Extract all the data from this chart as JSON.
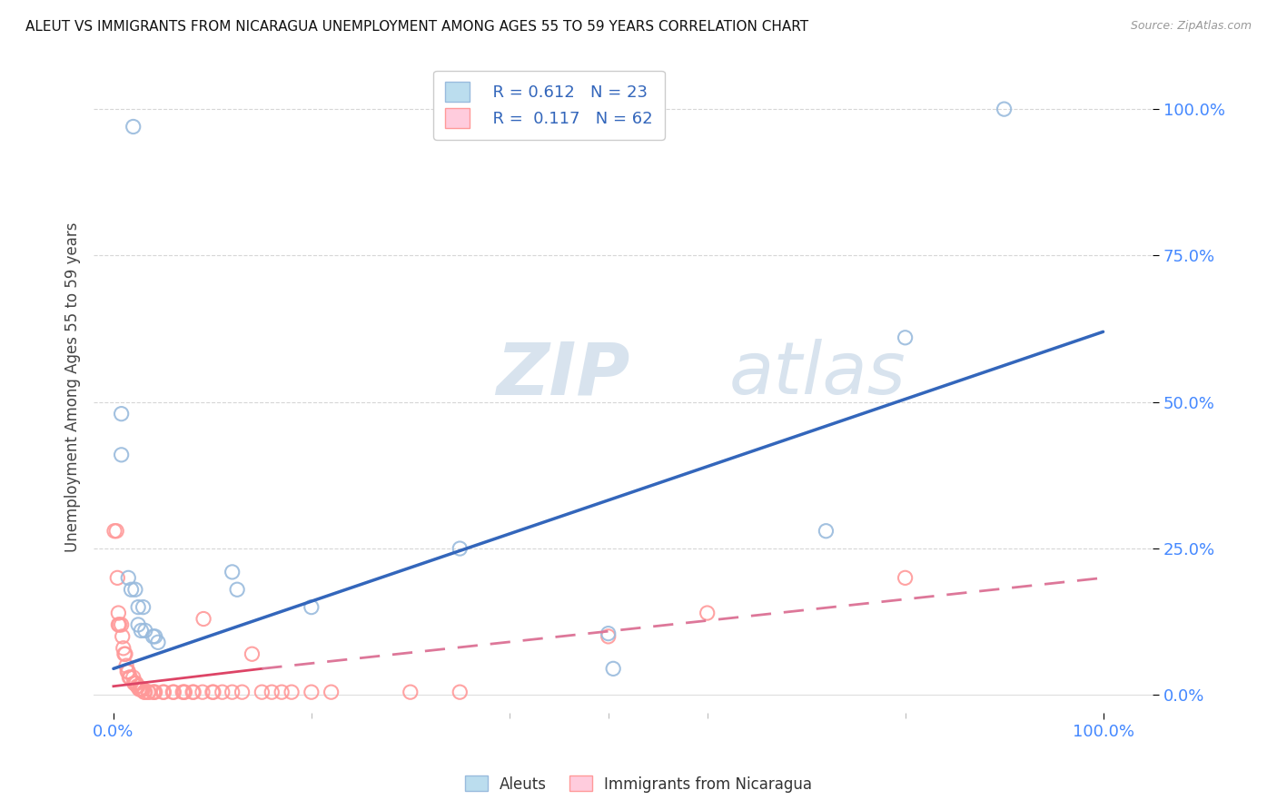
{
  "title": "ALEUT VS IMMIGRANTS FROM NICARAGUA UNEMPLOYMENT AMONG AGES 55 TO 59 YEARS CORRELATION CHART",
  "source": "Source: ZipAtlas.com",
  "ylabel_label": "Unemployment Among Ages 55 to 59 years",
  "legend_blue_r": "R = 0.612",
  "legend_blue_n": "N = 23",
  "legend_pink_r": "R =  0.117",
  "legend_pink_n": "N = 62",
  "blue_scatter_color": "#99BBDD",
  "pink_scatter_color": "#FF9999",
  "trendline_blue_color": "#3366BB",
  "trendline_pink_solid_color": "#DD4466",
  "trendline_pink_dash_color": "#DD7799",
  "watermark_zip": "ZIP",
  "watermark_atlas": "atlas",
  "background_color": "#FFFFFF",
  "grid_color": "#CCCCCC",
  "marker_size": 120,
  "marker_linewidth": 1.5,
  "aleut_points_pct": [
    [
      2.0,
      97.0
    ],
    [
      0.8,
      48.0
    ],
    [
      0.8,
      41.0
    ],
    [
      1.5,
      20.0
    ],
    [
      1.8,
      18.0
    ],
    [
      2.2,
      18.0
    ],
    [
      2.5,
      15.0
    ],
    [
      3.0,
      15.0
    ],
    [
      2.5,
      12.0
    ],
    [
      2.8,
      11.0
    ],
    [
      3.2,
      11.0
    ],
    [
      4.0,
      10.0
    ],
    [
      4.2,
      10.0
    ],
    [
      4.5,
      9.0
    ],
    [
      12.0,
      21.0
    ],
    [
      12.5,
      18.0
    ],
    [
      20.0,
      15.0
    ],
    [
      35.0,
      25.0
    ],
    [
      50.0,
      10.5
    ],
    [
      50.5,
      4.5
    ],
    [
      72.0,
      28.0
    ],
    [
      80.0,
      61.0
    ],
    [
      90.0,
      100.0
    ]
  ],
  "nicaragua_points_pct": [
    [
      0.1,
      28.0
    ],
    [
      0.3,
      28.0
    ],
    [
      0.4,
      20.0
    ],
    [
      0.5,
      14.0
    ],
    [
      0.5,
      12.0
    ],
    [
      0.6,
      12.0
    ],
    [
      0.8,
      12.0
    ],
    [
      0.9,
      10.0
    ],
    [
      1.0,
      8.0
    ],
    [
      1.1,
      7.0
    ],
    [
      1.2,
      7.0
    ],
    [
      1.3,
      5.0
    ],
    [
      1.4,
      4.0
    ],
    [
      1.5,
      4.0
    ],
    [
      1.6,
      3.0
    ],
    [
      1.7,
      3.0
    ],
    [
      2.0,
      3.0
    ],
    [
      2.1,
      2.0
    ],
    [
      2.2,
      2.0
    ],
    [
      2.3,
      2.0
    ],
    [
      2.4,
      1.5
    ],
    [
      2.5,
      1.5
    ],
    [
      2.6,
      1.0
    ],
    [
      2.7,
      1.0
    ],
    [
      2.8,
      1.0
    ],
    [
      2.9,
      1.0
    ],
    [
      3.0,
      1.0
    ],
    [
      3.1,
      0.5
    ],
    [
      3.2,
      0.5
    ],
    [
      3.5,
      0.5
    ],
    [
      3.6,
      0.5
    ],
    [
      4.0,
      0.5
    ],
    [
      4.1,
      0.5
    ],
    [
      4.2,
      0.5
    ],
    [
      5.0,
      0.5
    ],
    [
      5.1,
      0.5
    ],
    [
      6.0,
      0.5
    ],
    [
      6.1,
      0.5
    ],
    [
      7.0,
      0.5
    ],
    [
      7.1,
      0.5
    ],
    [
      7.2,
      0.5
    ],
    [
      8.0,
      0.5
    ],
    [
      8.1,
      0.5
    ],
    [
      9.0,
      0.5
    ],
    [
      9.1,
      13.0
    ],
    [
      10.0,
      0.5
    ],
    [
      10.1,
      0.5
    ],
    [
      11.0,
      0.5
    ],
    [
      12.0,
      0.5
    ],
    [
      13.0,
      0.5
    ],
    [
      14.0,
      7.0
    ],
    [
      15.0,
      0.5
    ],
    [
      16.0,
      0.5
    ],
    [
      17.0,
      0.5
    ],
    [
      18.0,
      0.5
    ],
    [
      20.0,
      0.5
    ],
    [
      22.0,
      0.5
    ],
    [
      30.0,
      0.5
    ],
    [
      35.0,
      0.5
    ],
    [
      50.0,
      10.0
    ],
    [
      60.0,
      14.0
    ],
    [
      80.0,
      20.0
    ]
  ],
  "blue_trendline_pct": [
    [
      0.0,
      4.5
    ],
    [
      100.0,
      62.0
    ]
  ],
  "pink_trendline_solid_pct": [
    [
      0.0,
      1.5
    ],
    [
      15.0,
      4.5
    ]
  ],
  "pink_trendline_dash_pct": [
    [
      15.0,
      4.5
    ],
    [
      100.0,
      20.0
    ]
  ]
}
